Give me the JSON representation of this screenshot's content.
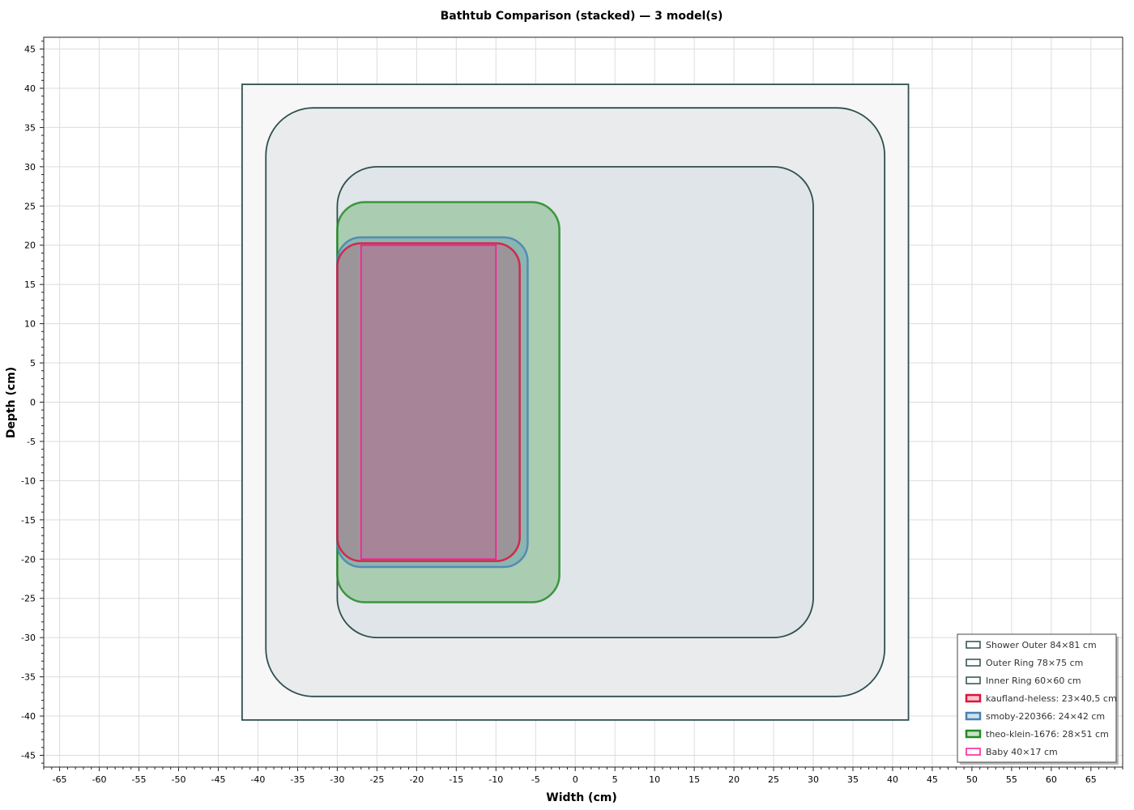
{
  "chart_data": {
    "type": "area",
    "title": "Bathtub Comparison (stacked) — 3 model(s)",
    "xlabel": "Width (cm)",
    "ylabel": "Depth (cm)",
    "xlim": [
      -67,
      69
    ],
    "ylim": [
      -46.5,
      46.5
    ],
    "xticks": [
      -65,
      -60,
      -55,
      -50,
      -45,
      -40,
      -35,
      -30,
      -25,
      -20,
      -15,
      -10,
      -5,
      0,
      5,
      10,
      15,
      20,
      25,
      30,
      35,
      40,
      45,
      50,
      55,
      60,
      65
    ],
    "yticks": [
      45,
      40,
      35,
      30,
      25,
      20,
      15,
      10,
      5,
      0,
      -5,
      -10,
      -15,
      -20,
      -25,
      -30,
      -35,
      -40,
      -45
    ],
    "grid": true,
    "legend_position": "bottom-right",
    "series": [
      {
        "name": "Shower Outer 84×81 cm",
        "x0": -42,
        "x1": 42,
        "y0": -40.5,
        "y1": 40.5,
        "corner_radius": 0,
        "stroke": "#2f4f4f",
        "fill": "#f7f7f7",
        "fill_opacity": 1
      },
      {
        "name": "Outer Ring 78×75 cm",
        "x0": -39,
        "x1": 39,
        "y0": -37.5,
        "y1": 37.5,
        "corner_radius": 6,
        "stroke": "#2f4f4f",
        "fill": "#e9ebed",
        "fill_opacity": 1
      },
      {
        "name": "Inner Ring 60×60 cm",
        "x0": -30,
        "x1": 30,
        "y0": -30,
        "y1": 30,
        "corner_radius": 5,
        "stroke": "#2f4f4f",
        "fill": "#e0e5e9",
        "fill_opacity": 1
      },
      {
        "name": "theo-klein-1676: 28×51 cm",
        "x0": -30,
        "x1": -2,
        "y0": -25.5,
        "y1": 25.5,
        "corner_radius": 3.5,
        "stroke": "#228b22",
        "fill": "#228b22",
        "fill_opacity": 0.28
      },
      {
        "name": "smoby-220366: 24×42 cm",
        "x0": -30,
        "x1": -6,
        "y0": -21,
        "y1": 21,
        "corner_radius": 3,
        "stroke": "#4682b4",
        "fill": "#4682b4",
        "fill_opacity": 0.3
      },
      {
        "name": "kaufland-heless: 23×40,5 cm",
        "x0": -30,
        "x1": -7,
        "y0": -20.25,
        "y1": 20.25,
        "corner_radius": 3,
        "stroke": "#dc143c",
        "fill": "#dc143c",
        "fill_opacity": 0.2
      },
      {
        "name": "Baby 40×17 cm",
        "x0": -27,
        "x1": -10,
        "y0": -20,
        "y1": 20,
        "corner_radius": 0,
        "stroke": "#ff1493",
        "fill": "#ff1493",
        "fill_opacity": 0.12
      }
    ],
    "legend_order": [
      {
        "label": "Shower Outer 84×81 cm",
        "color": "#2f4f4f"
      },
      {
        "label": "Outer Ring 78×75 cm",
        "color": "#2f4f4f"
      },
      {
        "label": "Inner Ring 60×60 cm",
        "color": "#2f4f4f"
      },
      {
        "label": "kaufland-heless: 23×40,5 cm",
        "color": "#dc143c"
      },
      {
        "label": "smoby-220366: 24×42 cm",
        "color": "#4682b4"
      },
      {
        "label": "theo-klein-1676: 28×51 cm",
        "color": "#228b22"
      },
      {
        "label": "Baby 40×17 cm",
        "color": "#ff1493"
      }
    ]
  }
}
